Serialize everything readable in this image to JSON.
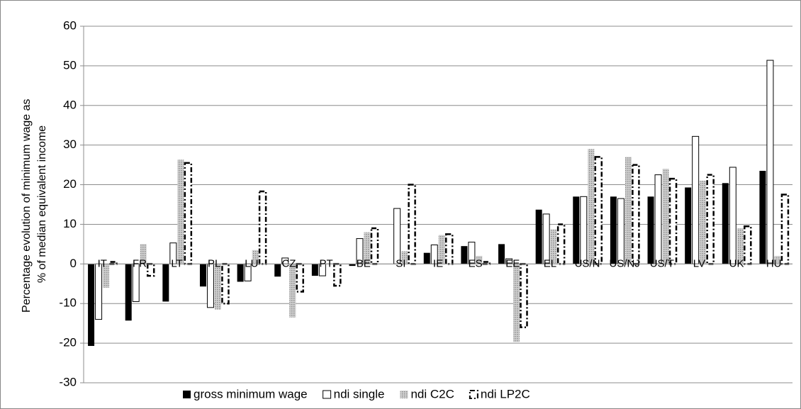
{
  "chart_data": {
    "type": "bar",
    "y_label": [
      "Percentage evolution of minimum wage as",
      "% of median equivalent income"
    ],
    "categories": [
      "IT",
      "FR",
      "LT",
      "PL",
      "LU",
      "CZ",
      "PT",
      "BE",
      "SI",
      "IE",
      "ES",
      "EE",
      "EL",
      "US/N",
      "US/NJ",
      "US/T",
      "LV",
      "UK",
      "HU"
    ],
    "series": [
      {
        "name": "gross minimum wage",
        "color": "#000000",
        "values": [
          -20.7,
          -14.3,
          -9.5,
          -5.7,
          -4.5,
          -3.2,
          -3,
          -0.5,
          0,
          2.8,
          4.5,
          5,
          13.7,
          17,
          17,
          17,
          19.3,
          20.4,
          23.5
        ]
      },
      {
        "name": "ndi single",
        "color": "#ffffff",
        "values": [
          -14,
          -9.5,
          5.3,
          -11,
          -4.3,
          1.5,
          -3,
          6.4,
          14,
          4.8,
          5.5,
          1.3,
          12.6,
          17,
          16.5,
          22.5,
          32.2,
          24.4,
          51.4
        ]
      },
      {
        "name": "ndi C2C",
        "color": "#a6a6a6",
        "values": [
          -6,
          5,
          26.3,
          -11.5,
          3.5,
          -13.5,
          0.2,
          8,
          3.2,
          7.3,
          2,
          -19.7,
          8.7,
          29,
          27,
          24,
          21,
          9,
          2
        ]
      },
      {
        "name": "ndi LP2C",
        "color": "#ffffff",
        "line_style": "dashed",
        "values": [
          0.5,
          -3,
          25.5,
          -10,
          18.3,
          -7,
          -5.5,
          9,
          20,
          7.5,
          0.5,
          -16,
          10,
          27,
          25,
          21.5,
          22.5,
          9.5,
          17.5
        ]
      }
    ],
    "ylim": [
      -30,
      60
    ],
    "yticks": [
      -30,
      -20,
      -10,
      0,
      10,
      20,
      30,
      40,
      50,
      60
    ],
    "grid": true,
    "legend": "bottom"
  }
}
